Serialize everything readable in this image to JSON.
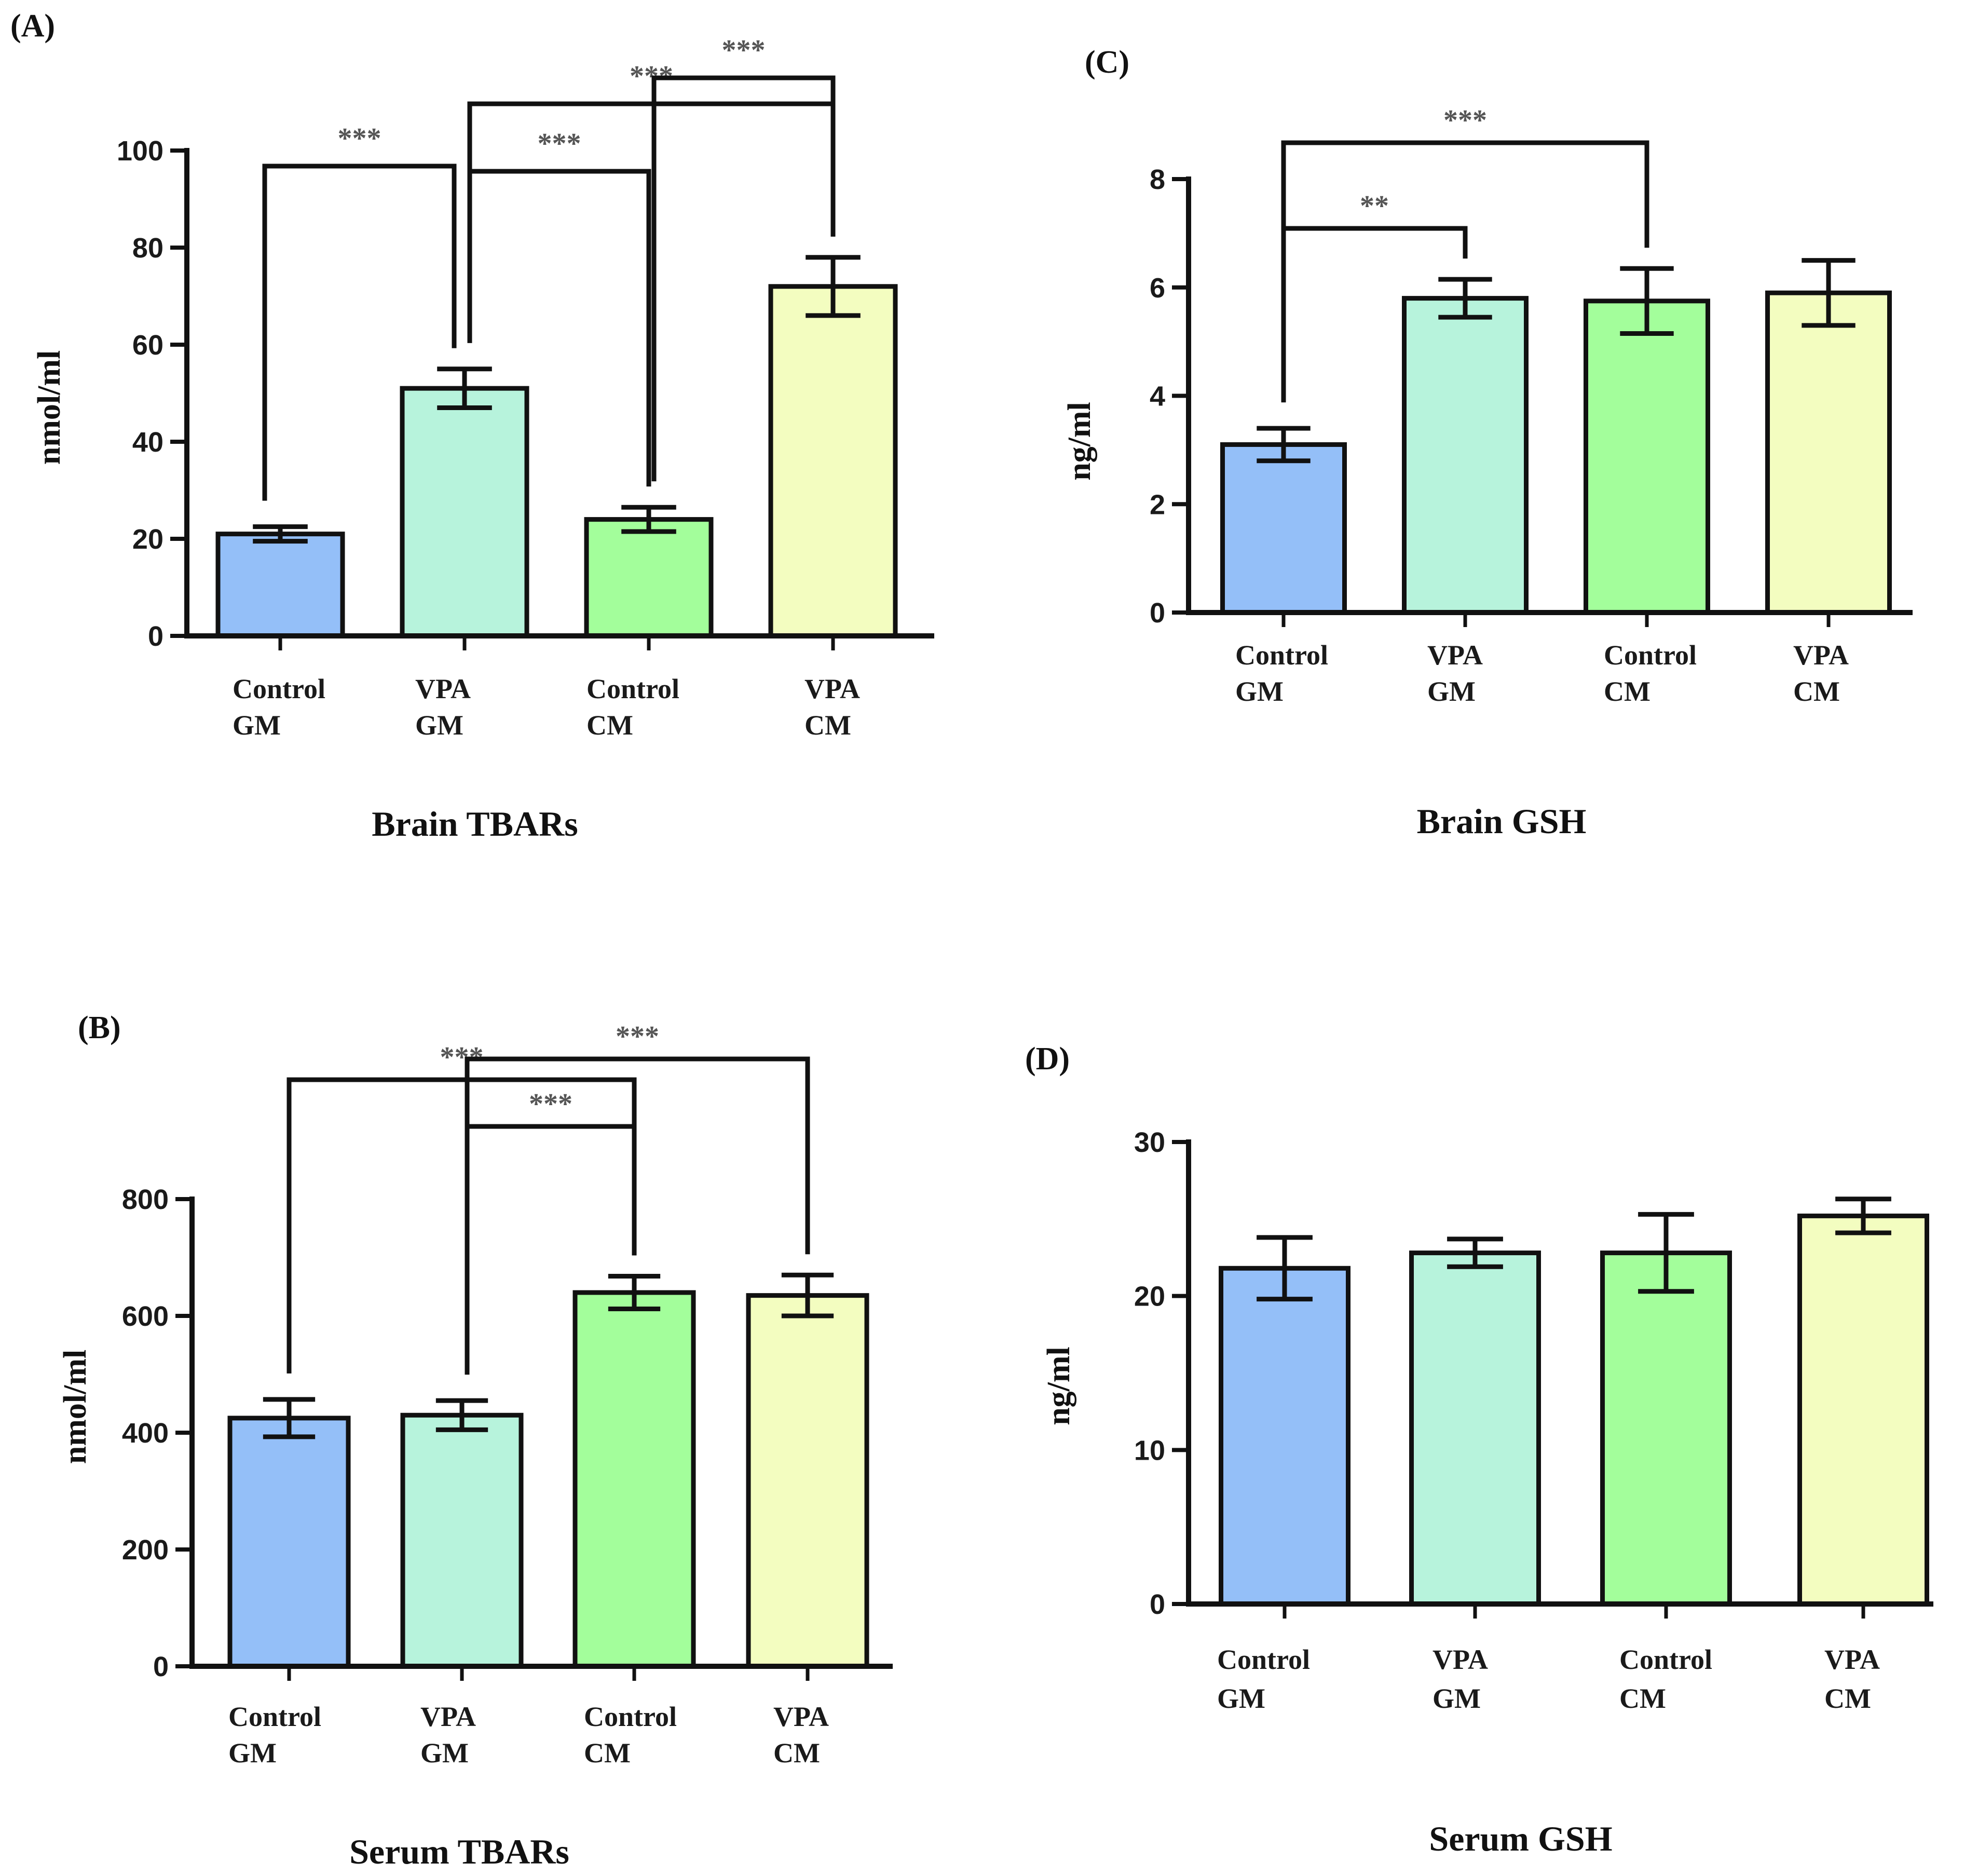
{
  "colors": {
    "control_gm": "#94bff8",
    "vpa_gm": "#b7f3dc",
    "control_cm": "#a3fe9b",
    "vpa_cm": "#f3fdc0",
    "axis": "#111111",
    "sig_text": "#555555"
  },
  "chart_data": [
    {
      "id": "A",
      "panel_label": "(A)",
      "type": "bar",
      "title": "Brain TBARs",
      "ylabel": "nmol/ml",
      "xlabel": "",
      "ylim": [
        0,
        100
      ],
      "yticks": [
        0,
        20,
        40,
        60,
        80,
        100
      ],
      "categories": [
        [
          "Control",
          "GM"
        ],
        [
          "VPA",
          "GM"
        ],
        [
          "Control",
          "CM"
        ],
        [
          "VPA",
          "CM"
        ]
      ],
      "values": [
        21,
        51,
        24,
        72
      ],
      "errors": [
        1.5,
        4,
        2.5,
        6
      ],
      "significance": [
        {
          "from": 0,
          "to": 1,
          "label": "***"
        },
        {
          "from": 1,
          "to": 2,
          "label": "***"
        },
        {
          "from": 1,
          "to": 3,
          "label": "***"
        },
        {
          "from": 2,
          "to": 3,
          "label": "***"
        }
      ]
    },
    {
      "id": "B",
      "panel_label": "(B)",
      "type": "bar",
      "title": "Serum TBARs",
      "ylabel": "nmol/ml",
      "xlabel": "",
      "ylim": [
        0,
        800
      ],
      "yticks": [
        0,
        200,
        400,
        600,
        800
      ],
      "categories": [
        [
          "Control",
          "GM"
        ],
        [
          "VPA",
          "GM"
        ],
        [
          "Control",
          "CM"
        ],
        [
          "VPA",
          "CM"
        ]
      ],
      "values": [
        425,
        430,
        640,
        635
      ],
      "errors": [
        32,
        25,
        28,
        35
      ],
      "significance": [
        {
          "from": 0,
          "to": 2,
          "label": "***"
        },
        {
          "from": 1,
          "to": 2,
          "label": "***"
        },
        {
          "from": 1,
          "to": 3,
          "label": "***"
        }
      ]
    },
    {
      "id": "C",
      "panel_label": "(C)",
      "type": "bar",
      "title": "Brain GSH",
      "ylabel": "ng/ml",
      "xlabel": "",
      "ylim": [
        0,
        8
      ],
      "yticks": [
        0,
        2,
        4,
        6,
        8
      ],
      "categories": [
        [
          "Control",
          "GM"
        ],
        [
          "VPA",
          "GM"
        ],
        [
          "Control",
          "CM"
        ],
        [
          "VPA",
          "CM"
        ]
      ],
      "values": [
        3.1,
        5.8,
        5.75,
        5.9
      ],
      "errors": [
        0.3,
        0.35,
        0.6,
        0.6
      ],
      "significance": [
        {
          "from": 0,
          "to": 1,
          "label": "**"
        },
        {
          "from": 0,
          "to": 2,
          "label": "***"
        }
      ]
    },
    {
      "id": "D",
      "panel_label": "(D)",
      "type": "bar",
      "title": "Serum GSH",
      "ylabel": "ng/ml",
      "xlabel": "",
      "ylim": [
        0,
        30
      ],
      "yticks": [
        0,
        10,
        20,
        30
      ],
      "categories": [
        [
          "Control",
          "GM"
        ],
        [
          "VPA",
          "GM"
        ],
        [
          "Control",
          "CM"
        ],
        [
          "VPA",
          "CM"
        ]
      ],
      "values": [
        21.8,
        22.8,
        22.8,
        25.2
      ],
      "errors": [
        2,
        0.9,
        2.5,
        1.1
      ],
      "significance": []
    }
  ]
}
